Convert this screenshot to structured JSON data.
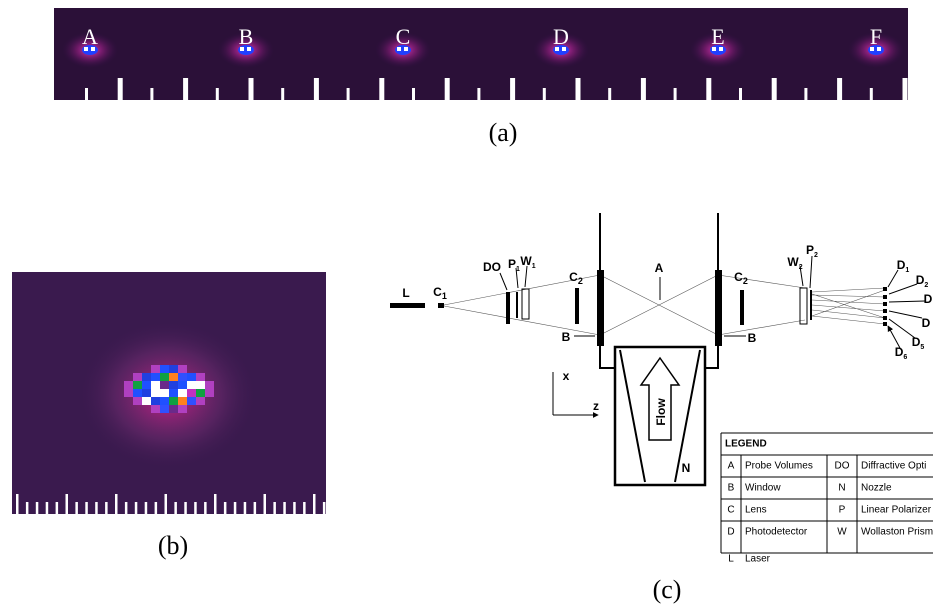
{
  "panel_a": {
    "spot_labels": [
      "A",
      "B",
      "C",
      "D",
      "E",
      "F"
    ],
    "caption": "(a)"
  },
  "panel_b": {
    "caption": "(b)"
  },
  "panel_c": {
    "caption": "(c)",
    "diagram_labels": [
      {
        "text": "L"
      },
      {
        "text": "C",
        "sub": "1"
      },
      {
        "text": "DO"
      },
      {
        "text": "P",
        "sub": "1"
      },
      {
        "text": "W",
        "sub": "1"
      },
      {
        "text": "C",
        "sub": "2"
      },
      {
        "text": "A"
      },
      {
        "text": "B"
      },
      {
        "text": "C",
        "sub": "2"
      },
      {
        "text": "B"
      },
      {
        "text": "W",
        "sub": "2"
      },
      {
        "text": "P",
        "sub": "2"
      },
      {
        "text": "D",
        "sub": "1"
      },
      {
        "text": "D",
        "sub": "2"
      },
      {
        "text": "D"
      },
      {
        "text": "D"
      },
      {
        "text": "D",
        "sub": "5"
      },
      {
        "text": "D",
        "sub": "6"
      },
      {
        "text": "x"
      },
      {
        "text": "z"
      },
      {
        "text": "Flow"
      },
      {
        "text": "N"
      }
    ],
    "legend": {
      "title": "LEGEND",
      "rows": [
        [
          "A",
          "Probe Volumes",
          "DO",
          "Diffractive Opti"
        ],
        [
          "B",
          "Window",
          "N",
          "Nozzle"
        ],
        [
          "C",
          "Lens",
          "P",
          "Linear Polarizer"
        ],
        [
          "D",
          "Photodetector",
          "W",
          "Wollaston Prism"
        ],
        [
          "L",
          "Laser"
        ]
      ]
    }
  }
}
